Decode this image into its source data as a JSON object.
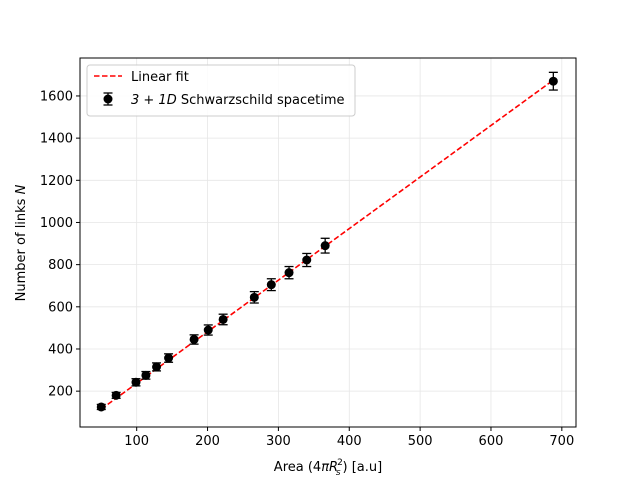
{
  "chart_data": {
    "type": "scatter",
    "xlabel": {
      "pre": "Area (4",
      "pi": "π",
      "R": "R",
      "sup": "2",
      "sub": "s",
      "post": ") [a.u]"
    },
    "ylabel": {
      "pre": "Number of links ",
      "var": "N"
    },
    "xlim": [
      20,
      720
    ],
    "ylim": [
      30,
      1780
    ],
    "xticks": [
      100,
      200,
      300,
      400,
      500,
      600,
      700
    ],
    "yticks": [
      200,
      400,
      600,
      800,
      1000,
      1200,
      1400,
      1600
    ],
    "grid": true,
    "legend_position": "top-left",
    "legend": {
      "fit_label": "Linear fit",
      "data_label": {
        "math": "3 + 1D",
        "rest": " Schwarzschild spacetime"
      }
    },
    "colors": {
      "fit": "#ff0000",
      "data": "#000000",
      "grid": "#e6e6e6"
    },
    "fit": {
      "x": [
        50,
        690
      ],
      "y": [
        115,
        1680
      ]
    },
    "series": [
      {
        "points": [
          {
            "x": 50,
            "y": 125,
            "err": 12
          },
          {
            "x": 71,
            "y": 180,
            "err": 14
          },
          {
            "x": 99,
            "y": 242,
            "err": 17
          },
          {
            "x": 113,
            "y": 275,
            "err": 18
          },
          {
            "x": 128,
            "y": 315,
            "err": 19
          },
          {
            "x": 145,
            "y": 357,
            "err": 20
          },
          {
            "x": 181,
            "y": 445,
            "err": 22
          },
          {
            "x": 201,
            "y": 490,
            "err": 24
          },
          {
            "x": 222,
            "y": 540,
            "err": 25
          },
          {
            "x": 266,
            "y": 645,
            "err": 27
          },
          {
            "x": 290,
            "y": 705,
            "err": 28
          },
          {
            "x": 315,
            "y": 762,
            "err": 29
          },
          {
            "x": 340,
            "y": 822,
            "err": 31
          },
          {
            "x": 366,
            "y": 890,
            "err": 35
          },
          {
            "x": 688,
            "y": 1670,
            "err": 42
          }
        ]
      }
    ]
  }
}
